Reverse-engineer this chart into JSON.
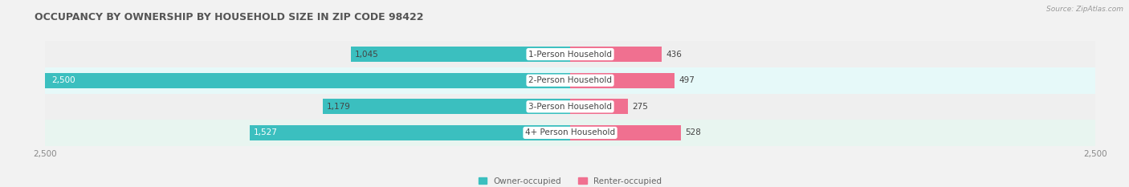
{
  "title": "OCCUPANCY BY OWNERSHIP BY HOUSEHOLD SIZE IN ZIP CODE 98422",
  "source": "Source: ZipAtlas.com",
  "categories": [
    "1-Person Household",
    "2-Person Household",
    "3-Person Household",
    "4+ Person Household"
  ],
  "owner_values": [
    1045,
    2500,
    1179,
    1527
  ],
  "renter_values": [
    436,
    497,
    275,
    528
  ],
  "max_val": 2500,
  "owner_color": "#3bbfbf",
  "renter_color": "#f07090",
  "row_bg_colors": [
    "#efefef",
    "#e6f9f9",
    "#efefef",
    "#e8f5f0"
  ],
  "title_fontsize": 9,
  "label_fontsize": 7.5,
  "value_fontsize": 7.5,
  "legend_label_owner": "Owner-occupied",
  "legend_label_renter": "Renter-occupied",
  "figsize": [
    14.06,
    2.33
  ],
  "dpi": 100
}
